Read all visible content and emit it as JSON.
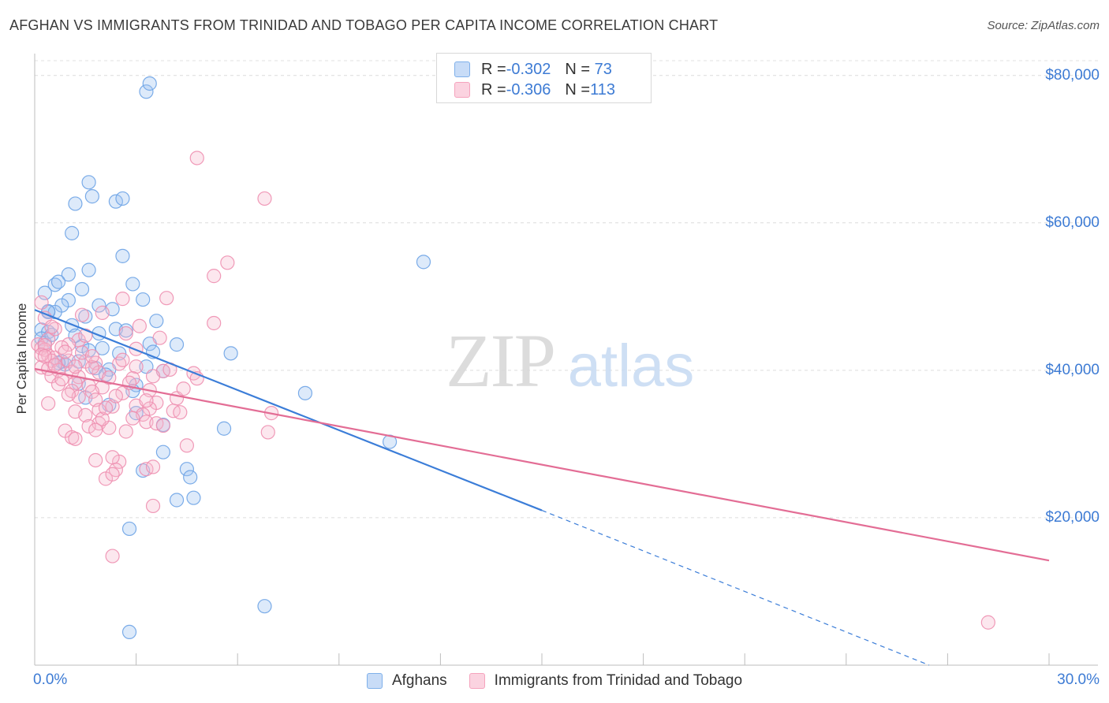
{
  "header": {
    "title": "AFGHAN VS IMMIGRANTS FROM TRINIDAD AND TOBAGO PER CAPITA INCOME CORRELATION CHART",
    "source": "Source: ZipAtlas.com"
  },
  "watermark": {
    "zip": "ZIP",
    "atlas": "atlas"
  },
  "legend_top": [
    {
      "r_label": "R = ",
      "r_value": "-0.302",
      "n_label": "N = ",
      "n_value": " 73",
      "color": "#7fb0ea"
    },
    {
      "r_label": "R = ",
      "r_value": "-0.306",
      "n_label": "N = ",
      "n_value": "113",
      "color": "#f5a3bd"
    }
  ],
  "legend_bottom": [
    {
      "label": "Afghans",
      "color": "#7fb0ea"
    },
    {
      "label": "Immigrants from Trinidad and Tobago",
      "color": "#f5a3bd"
    }
  ],
  "chart_data": {
    "type": "scatter",
    "title": "AFGHAN VS IMMIGRANTS FROM TRINIDAD AND TOBAGO PER CAPITA INCOME CORRELATION CHART",
    "xlabel": "",
    "ylabel": "Per Capita Income",
    "xlim": [
      0,
      30
    ],
    "ylim": [
      0,
      82000
    ],
    "x_tick_labels": [
      {
        "value": 0,
        "label": "0.0%"
      },
      {
        "value": 30,
        "label": "30.0%"
      }
    ],
    "y_tick_labels": [
      {
        "value": 20000,
        "label": "$20,000"
      },
      {
        "value": 40000,
        "label": "$40,000"
      },
      {
        "value": 60000,
        "label": "$60,000"
      },
      {
        "value": 80000,
        "label": "$80,000"
      }
    ],
    "grid": true,
    "series": [
      {
        "name": "Afghans",
        "color": "#7fb0ea",
        "line_color": "#3b7dd8",
        "trend": {
          "x_start": 0,
          "y_start": 48200,
          "x_solid_end": 15,
          "y_solid_end": 21000,
          "x_dash_end": 30,
          "y_dash_end": -6500
        },
        "points": [
          [
            3.3,
            77800
          ],
          [
            3.4,
            78900
          ],
          [
            1.6,
            65500
          ],
          [
            1.2,
            62600
          ],
          [
            1.7,
            63600
          ],
          [
            2.4,
            62900
          ],
          [
            2.6,
            63300
          ],
          [
            1.1,
            58600
          ],
          [
            2.6,
            55500
          ],
          [
            11.5,
            54700
          ],
          [
            1.0,
            53000
          ],
          [
            1.6,
            53600
          ],
          [
            0.6,
            51600
          ],
          [
            0.7,
            52000
          ],
          [
            0.3,
            50500
          ],
          [
            1.4,
            51000
          ],
          [
            2.9,
            51700
          ],
          [
            1.0,
            49500
          ],
          [
            0.8,
            48800
          ],
          [
            1.9,
            48800
          ],
          [
            2.3,
            48300
          ],
          [
            3.2,
            49600
          ],
          [
            0.4,
            47900
          ],
          [
            0.6,
            47900
          ],
          [
            1.5,
            47300
          ],
          [
            3.6,
            46700
          ],
          [
            0.2,
            45500
          ],
          [
            0.4,
            45200
          ],
          [
            2.4,
            45600
          ],
          [
            2.7,
            45400
          ],
          [
            1.9,
            45000
          ],
          [
            0.2,
            44300
          ],
          [
            0.3,
            43700
          ],
          [
            1.4,
            43300
          ],
          [
            3.4,
            43600
          ],
          [
            4.2,
            43500
          ],
          [
            1.6,
            42700
          ],
          [
            2.5,
            42300
          ],
          [
            5.8,
            42300
          ],
          [
            0.8,
            41200
          ],
          [
            1.3,
            41200
          ],
          [
            0.9,
            40800
          ],
          [
            1.8,
            40300
          ],
          [
            2.2,
            40100
          ],
          [
            3.8,
            39900
          ],
          [
            1.3,
            38200
          ],
          [
            3.0,
            38000
          ],
          [
            8.0,
            36900
          ],
          [
            3.0,
            34200
          ],
          [
            2.2,
            35300
          ],
          [
            3.8,
            32600
          ],
          [
            5.6,
            32100
          ],
          [
            10.5,
            30300
          ],
          [
            3.8,
            28900
          ],
          [
            4.5,
            26600
          ],
          [
            3.2,
            26400
          ],
          [
            4.6,
            25500
          ],
          [
            4.2,
            22400
          ],
          [
            4.7,
            22700
          ],
          [
            2.8,
            18500
          ],
          [
            6.8,
            8000
          ],
          [
            2.8,
            4500
          ],
          [
            3.5,
            42500
          ],
          [
            2.0,
            43000
          ],
          [
            0.5,
            44800
          ],
          [
            1.1,
            46100
          ],
          [
            2.1,
            39400
          ],
          [
            0.7,
            41000
          ],
          [
            2.9,
            37200
          ],
          [
            1.5,
            36300
          ],
          [
            0.4,
            48000
          ],
          [
            3.3,
            40500
          ],
          [
            1.2,
            44700
          ]
        ]
      },
      {
        "name": "Immigrants from Trinidad and Tobago",
        "color": "#f5a3bd",
        "line_color": "#e36d95",
        "trend": {
          "x_start": 0,
          "y_start": 40200,
          "x_end": 30,
          "y_end": 14200
        },
        "points": [
          [
            4.8,
            68800
          ],
          [
            6.8,
            63300
          ],
          [
            5.7,
            54600
          ],
          [
            5.3,
            52800
          ],
          [
            2.6,
            49700
          ],
          [
            3.9,
            49800
          ],
          [
            0.2,
            49200
          ],
          [
            0.3,
            47100
          ],
          [
            5.3,
            46400
          ],
          [
            1.4,
            47500
          ],
          [
            3.1,
            46000
          ],
          [
            2.0,
            47800
          ],
          [
            0.4,
            44200
          ],
          [
            0.6,
            45600
          ],
          [
            2.7,
            45000
          ],
          [
            3.7,
            44400
          ],
          [
            1.3,
            44100
          ],
          [
            1.0,
            43500
          ],
          [
            0.1,
            43500
          ],
          [
            0.2,
            43000
          ],
          [
            0.3,
            42800
          ],
          [
            0.4,
            42000
          ],
          [
            0.6,
            41700
          ],
          [
            0.5,
            41300
          ],
          [
            1.0,
            41300
          ],
          [
            1.5,
            41200
          ],
          [
            1.8,
            41000
          ],
          [
            2.5,
            40900
          ],
          [
            3.0,
            40500
          ],
          [
            0.2,
            40400
          ],
          [
            0.4,
            40200
          ],
          [
            0.7,
            40000
          ],
          [
            1.1,
            39800
          ],
          [
            1.9,
            39700
          ],
          [
            3.8,
            39900
          ],
          [
            4.7,
            39600
          ],
          [
            0.5,
            39200
          ],
          [
            1.3,
            39100
          ],
          [
            2.2,
            39000
          ],
          [
            2.9,
            38900
          ],
          [
            4.8,
            38900
          ],
          [
            1.2,
            38300
          ],
          [
            0.7,
            38100
          ],
          [
            1.6,
            37900
          ],
          [
            2.0,
            37700
          ],
          [
            1.1,
            37200
          ],
          [
            1.7,
            37100
          ],
          [
            3.4,
            37300
          ],
          [
            2.6,
            36900
          ],
          [
            1.3,
            36400
          ],
          [
            1.8,
            36000
          ],
          [
            4.2,
            36200
          ],
          [
            0.4,
            35500
          ],
          [
            2.3,
            35100
          ],
          [
            3.0,
            35200
          ],
          [
            3.6,
            35600
          ],
          [
            3.4,
            34800
          ],
          [
            1.9,
            34600
          ],
          [
            1.2,
            34400
          ],
          [
            3.2,
            34000
          ],
          [
            4.1,
            34500
          ],
          [
            4.3,
            34300
          ],
          [
            7.0,
            34200
          ],
          [
            1.5,
            33900
          ],
          [
            2.9,
            33500
          ],
          [
            3.3,
            33000
          ],
          [
            3.6,
            32800
          ],
          [
            1.9,
            32800
          ],
          [
            1.6,
            32400
          ],
          [
            2.2,
            32200
          ],
          [
            0.9,
            31800
          ],
          [
            2.7,
            31700
          ],
          [
            1.8,
            31900
          ],
          [
            6.9,
            31600
          ],
          [
            3.8,
            32500
          ],
          [
            1.1,
            30900
          ],
          [
            1.2,
            30700
          ],
          [
            4.5,
            29800
          ],
          [
            1.8,
            27800
          ],
          [
            2.5,
            27600
          ],
          [
            2.4,
            26500
          ],
          [
            3.3,
            26600
          ],
          [
            2.1,
            25300
          ],
          [
            3.5,
            26900
          ],
          [
            2.3,
            25900
          ],
          [
            2.3,
            28200
          ],
          [
            3.5,
            21600
          ],
          [
            2.3,
            14800
          ],
          [
            28.2,
            5800
          ],
          [
            0.3,
            43400
          ],
          [
            0.2,
            42100
          ],
          [
            0.5,
            45900
          ],
          [
            0.8,
            43100
          ],
          [
            1.4,
            42400
          ],
          [
            1.7,
            40400
          ],
          [
            2.6,
            41400
          ],
          [
            3.0,
            42900
          ],
          [
            4.0,
            40100
          ],
          [
            0.9,
            42500
          ],
          [
            1.0,
            36700
          ],
          [
            2.8,
            38300
          ],
          [
            3.3,
            35900
          ],
          [
            2.0,
            33400
          ],
          [
            1.5,
            44700
          ],
          [
            0.6,
            40700
          ],
          [
            0.3,
            41900
          ],
          [
            1.2,
            40500
          ],
          [
            2.4,
            36500
          ],
          [
            3.5,
            39200
          ],
          [
            4.4,
            37500
          ],
          [
            0.8,
            38800
          ],
          [
            1.7,
            41900
          ],
          [
            2.1,
            34900
          ]
        ]
      }
    ]
  }
}
